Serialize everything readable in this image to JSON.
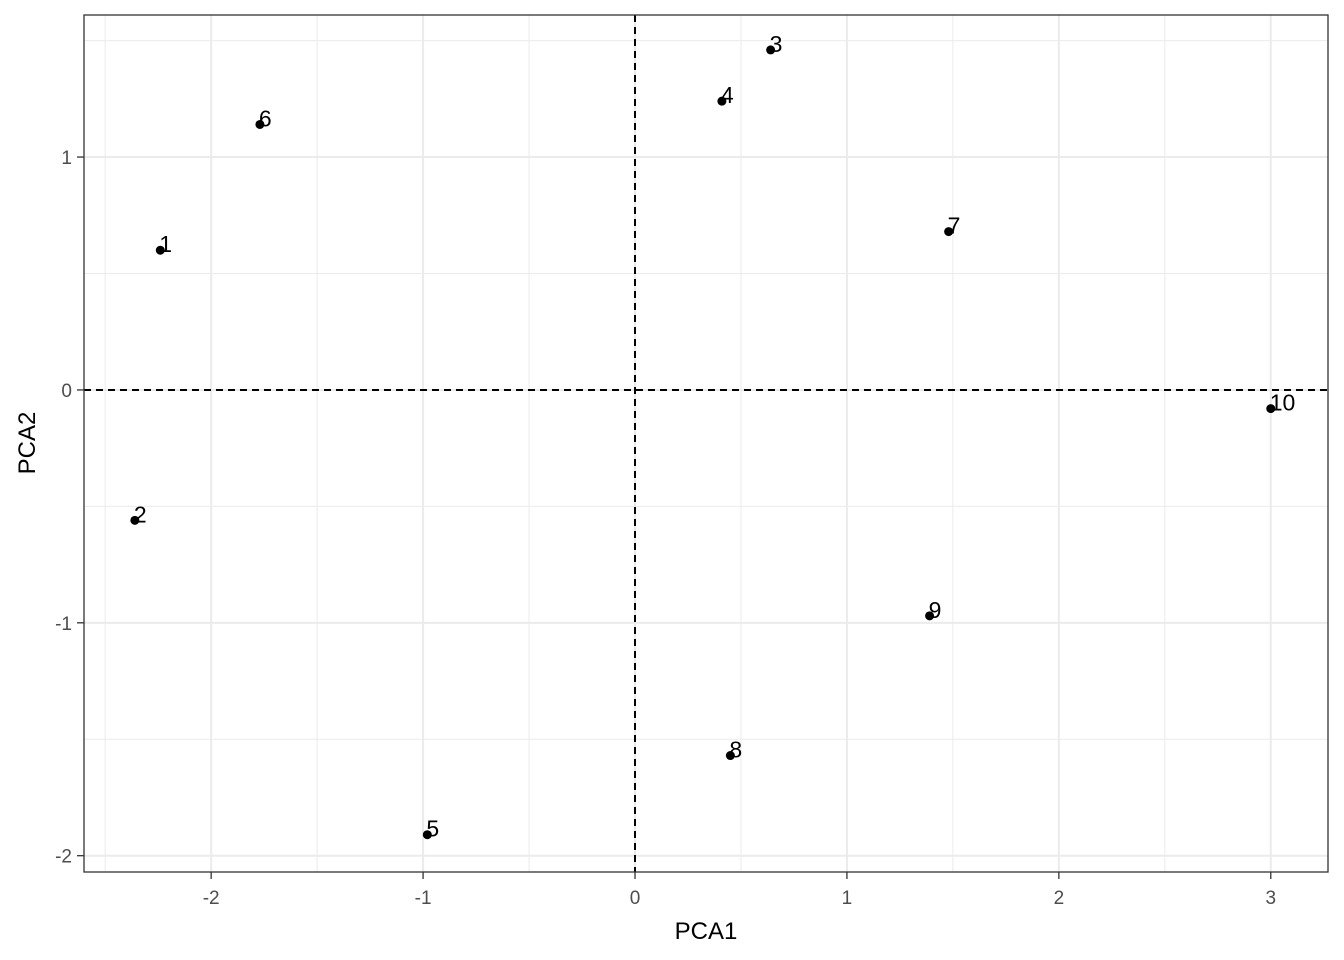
{
  "chart_data": {
    "type": "scatter",
    "xlabel": "PCA1",
    "ylabel": "PCA2",
    "xlim": [
      -2.6,
      3.27
    ],
    "ylim": [
      -2.07,
      1.61
    ],
    "x_ticks": [
      -2,
      -1,
      0,
      1,
      2,
      3
    ],
    "x_tick_labels": [
      "-2",
      "-1",
      "0",
      "1",
      "2",
      "3"
    ],
    "y_ticks": [
      -2,
      -1,
      0,
      1
    ],
    "y_tick_labels": [
      "-2",
      "-1",
      "0",
      "1"
    ],
    "reference_lines": {
      "x": 0,
      "y": 0,
      "style": "dashed"
    },
    "grid": true,
    "points": [
      {
        "label": "1",
        "x": -2.24,
        "y": 0.6
      },
      {
        "label": "2",
        "x": -2.36,
        "y": -0.56
      },
      {
        "label": "3",
        "x": 0.64,
        "y": 1.46
      },
      {
        "label": "4",
        "x": 0.41,
        "y": 1.24
      },
      {
        "label": "5",
        "x": -0.98,
        "y": -1.91
      },
      {
        "label": "6",
        "x": -1.77,
        "y": 1.14
      },
      {
        "label": "7",
        "x": 1.48,
        "y": 0.68
      },
      {
        "label": "8",
        "x": 0.45,
        "y": -1.57
      },
      {
        "label": "9",
        "x": 1.39,
        "y": -0.97
      },
      {
        "label": "10",
        "x": 3.0,
        "y": -0.08
      }
    ],
    "colors": {
      "point": "#000000",
      "grid": "#ebebeb",
      "panel_border": "#333333"
    }
  }
}
